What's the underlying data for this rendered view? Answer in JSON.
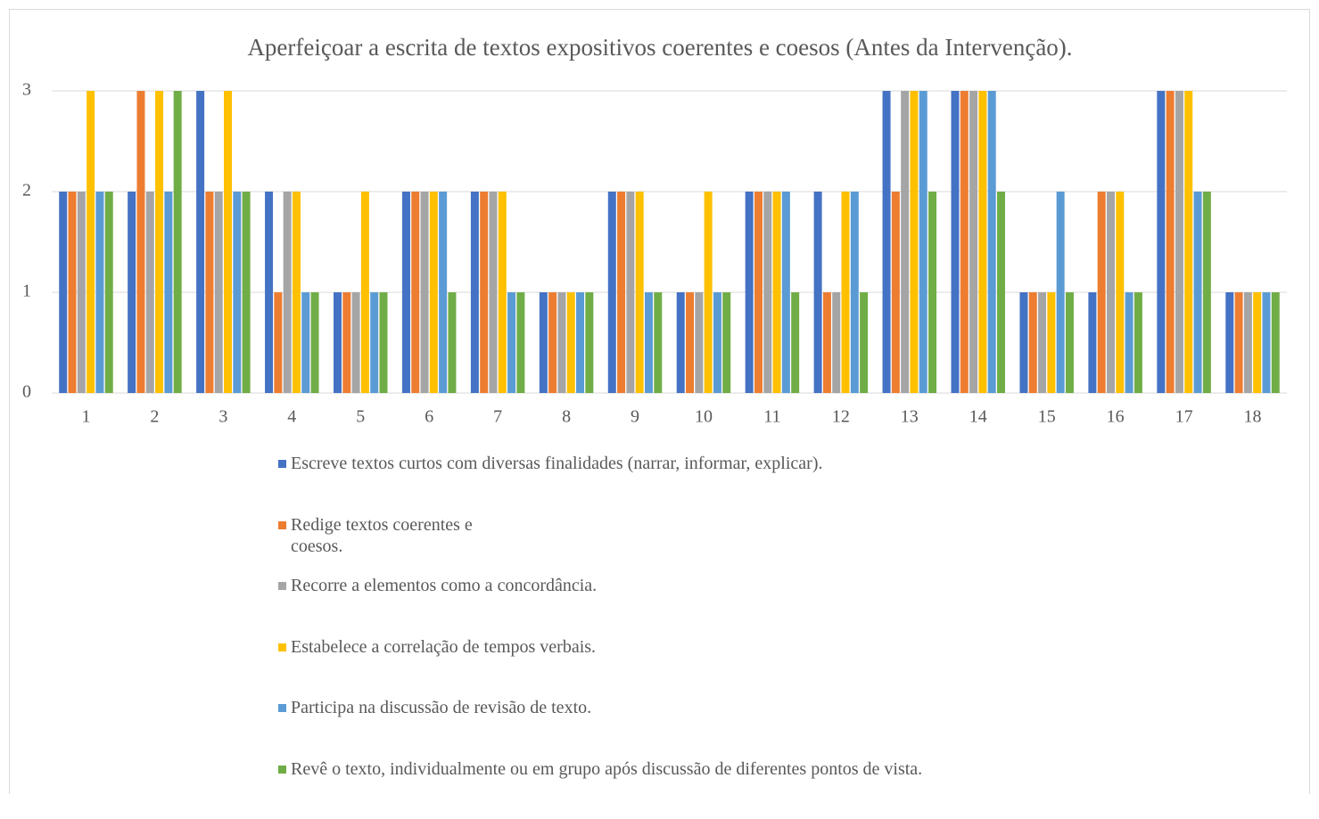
{
  "chart_data": {
    "type": "bar",
    "title": "Aperfeiçoar a escrita de textos expositivos coerentes e coesos (Antes da Intervenção).",
    "categories": [
      "1",
      "2",
      "3",
      "4",
      "5",
      "6",
      "7",
      "8",
      "9",
      "10",
      "11",
      "12",
      "13",
      "14",
      "15",
      "16",
      "17",
      "18"
    ],
    "series": [
      {
        "name": "Escreve textos curtos com diversas finalidades (narrar, informar, explicar).",
        "color": "#4472c4",
        "values": [
          2,
          2,
          3,
          2,
          1,
          2,
          2,
          1,
          2,
          1,
          2,
          2,
          3,
          3,
          1,
          1,
          3,
          1
        ]
      },
      {
        "name": "Redige textos coerentes e coesos.",
        "color": "#ed7d31",
        "values": [
          2,
          3,
          2,
          1,
          1,
          2,
          2,
          1,
          2,
          1,
          2,
          1,
          2,
          3,
          1,
          2,
          3,
          1
        ]
      },
      {
        "name": "Recorre a elementos como a concordância.",
        "color": "#a5a5a5",
        "values": [
          2,
          2,
          2,
          2,
          1,
          2,
          2,
          1,
          2,
          1,
          2,
          1,
          3,
          3,
          1,
          2,
          3,
          1
        ]
      },
      {
        "name": "Estabelece a correlação de tempos verbais.",
        "color": "#ffc000",
        "values": [
          3,
          3,
          3,
          2,
          2,
          2,
          2,
          1,
          2,
          2,
          2,
          2,
          3,
          3,
          1,
          2,
          3,
          1
        ]
      },
      {
        "name": "Participa na discussão de revisão de texto.",
        "color": "#5b9bd5",
        "values": [
          2,
          2,
          2,
          1,
          1,
          2,
          1,
          1,
          1,
          1,
          2,
          2,
          3,
          3,
          2,
          1,
          2,
          1
        ]
      },
      {
        "name": "Revê o texto, individualmente ou em grupo após discussão de diferentes pontos de vista.",
        "color": "#70ad47",
        "values": [
          2,
          3,
          2,
          1,
          1,
          1,
          1,
          1,
          1,
          1,
          1,
          1,
          2,
          2,
          1,
          1,
          2,
          1
        ]
      }
    ],
    "ylim": [
      0,
      3
    ],
    "yticks": [
      0,
      1,
      2,
      3
    ],
    "grid": true,
    "legend": "bottom"
  }
}
